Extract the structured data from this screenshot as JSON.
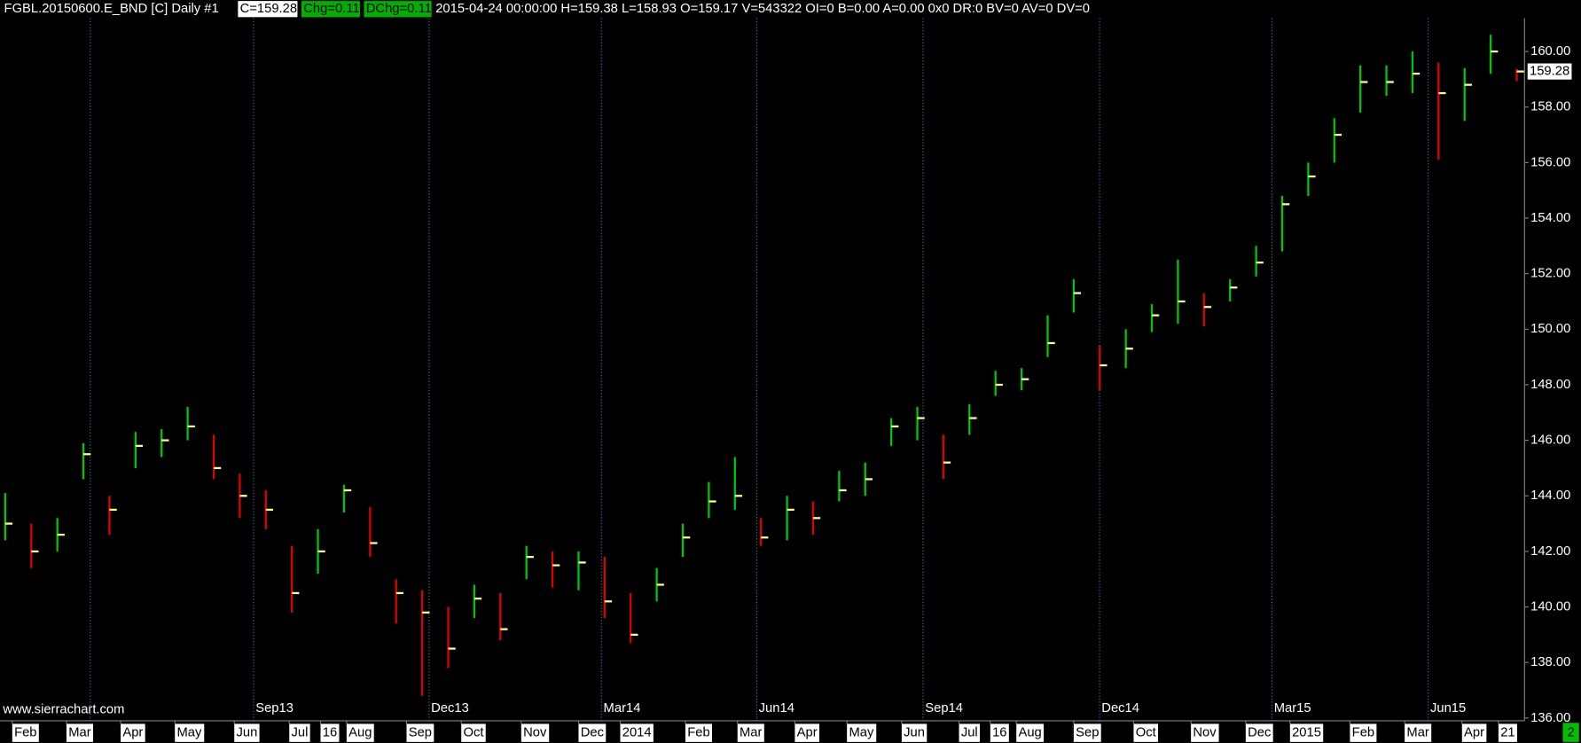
{
  "chart_data": {
    "type": "ohlc",
    "header": {
      "symbol": "FGBL.20150600.E_BND [C]  Daily  #1",
      "close": "C=159.28",
      "change": "Chg=0.11",
      "dchange": "DChg=0.11",
      "info": "2015-04-24 00:00:00 H=159.38 L=158.93 O=159.17 V=543322 OI=0 B=0.00 A=0.00 0x0 DR:0 BV=0 AV=0 DV=0"
    },
    "watermark": "www.sierrachart.com",
    "badge": "2",
    "up_color": "#00c800",
    "down_color": "#e00000",
    "close_tick_color": "#ffff80",
    "rollover_color": "#3f7f9f",
    "xlim": [
      -0.2,
      58.3
    ],
    "ylim": [
      135.9,
      161.2
    ],
    "yticks": [
      {
        "value": 136,
        "label": "136.00"
      },
      {
        "value": 138,
        "label": "138.00"
      },
      {
        "value": 140,
        "label": "140.00"
      },
      {
        "value": 142,
        "label": "142.00"
      },
      {
        "value": 144,
        "label": "144.00"
      },
      {
        "value": 146,
        "label": "146.00"
      },
      {
        "value": 148,
        "label": "148.00"
      },
      {
        "value": 150,
        "label": "150.00"
      },
      {
        "value": 152,
        "label": "152.00"
      },
      {
        "value": 154,
        "label": "154.00"
      },
      {
        "value": 156,
        "label": "156.00"
      },
      {
        "value": 158,
        "label": "158.00"
      },
      {
        "value": 160,
        "label": "160.00"
      }
    ],
    "xticks": [
      {
        "value": 0.27,
        "label": "Feb"
      },
      {
        "value": 2.35,
        "label": "Mar"
      },
      {
        "value": 4.43,
        "label": "Apr"
      },
      {
        "value": 6.51,
        "label": "May"
      },
      {
        "value": 8.79,
        "label": "Jun"
      },
      {
        "value": 10.9,
        "label": "Jul"
      },
      {
        "value": 12.1,
        "label": "16"
      },
      {
        "value": 13.1,
        "label": "Aug"
      },
      {
        "value": 15.4,
        "label": "Sep"
      },
      {
        "value": 17.5,
        "label": "Oct"
      },
      {
        "value": 19.8,
        "label": "Nov"
      },
      {
        "value": 22.0,
        "label": "Dec"
      },
      {
        "value": 23.6,
        "label": "2014"
      },
      {
        "value": 26.1,
        "label": "Feb"
      },
      {
        "value": 28.1,
        "label": "Mar"
      },
      {
        "value": 30.3,
        "label": "Apr"
      },
      {
        "value": 32.3,
        "label": "May"
      },
      {
        "value": 34.4,
        "label": "Jun"
      },
      {
        "value": 36.6,
        "label": "Jul"
      },
      {
        "value": 37.8,
        "label": "16"
      },
      {
        "value": 38.8,
        "label": "Aug"
      },
      {
        "value": 41.0,
        "label": "Sep"
      },
      {
        "value": 43.3,
        "label": "Oct"
      },
      {
        "value": 45.5,
        "label": "Nov"
      },
      {
        "value": 47.6,
        "label": "Dec"
      },
      {
        "value": 49.3,
        "label": "2015"
      },
      {
        "value": 51.6,
        "label": "Feb"
      },
      {
        "value": 53.7,
        "label": "Mar"
      },
      {
        "value": 55.9,
        "label": "Apr"
      },
      {
        "value": 57.3,
        "label": "21"
      }
    ],
    "rollovers": [
      3.24,
      9.52,
      16.26,
      22.85,
      28.82,
      35.22,
      41.97,
      48.59,
      54.57
    ],
    "rollover_labels": [
      null,
      "Sep13",
      "Dec13",
      "Mar14",
      "Jun14",
      "Sep14",
      "Dec14",
      "Mar15",
      "Jun15"
    ],
    "close": [
      143,
      142,
      142.6,
      145.5,
      143.5,
      145.8,
      146,
      146.5,
      145,
      144,
      143.5,
      140.5,
      142,
      144.2,
      142.3,
      140.5,
      139.8,
      138.5,
      140.3,
      139.2,
      141.8,
      141.5,
      141.6,
      140.2,
      139,
      140.8,
      142.5,
      143.8,
      144,
      142.5,
      143.5,
      143.2,
      144.2,
      144.6,
      146.5,
      146.8,
      145.2,
      146.8,
      148,
      148.2,
      149.5,
      151.3,
      148.7,
      149.3,
      150.5,
      151,
      150.8,
      151.5,
      152.4,
      154.5,
      155.5,
      157,
      158.9,
      158.9,
      159.2,
      158.5,
      158.8,
      160,
      159.28
    ],
    "high": [
      144.1,
      143,
      143.2,
      145.9,
      144,
      146.3,
      146.4,
      147.2,
      146.2,
      144.8,
      144.2,
      142.2,
      142.8,
      144.4,
      143.6,
      141,
      140.6,
      140,
      140.8,
      140.5,
      142.2,
      142,
      142,
      141.8,
      140.5,
      141.4,
      143,
      144.5,
      145.4,
      143.2,
      144,
      143.8,
      144.9,
      145.2,
      146.8,
      147.2,
      146.2,
      147.3,
      148.5,
      148.6,
      150.5,
      151.8,
      149.4,
      150,
      150.9,
      152.5,
      151.3,
      151.8,
      153,
      154.8,
      156,
      157.6,
      159.5,
      159.5,
      160,
      159.6,
      159.4,
      160.6,
      159.38
    ],
    "low": [
      142.4,
      141.4,
      142,
      144.6,
      142.6,
      145,
      145.4,
      146,
      144.6,
      143.2,
      142.8,
      139.8,
      141.2,
      143.4,
      141.8,
      139.4,
      136.8,
      137.8,
      139.6,
      138.8,
      141,
      140.7,
      140.6,
      139.6,
      138.7,
      140.2,
      141.8,
      143.2,
      143.5,
      142.2,
      142.4,
      142.6,
      143.8,
      144,
      145.8,
      146,
      144.6,
      146.2,
      147.6,
      147.8,
      149,
      150.6,
      147.8,
      148.6,
      149.9,
      150.2,
      150.1,
      151,
      151.9,
      152.8,
      154.8,
      156,
      157.8,
      158.4,
      158.5,
      156.1,
      157.5,
      159.2,
      158.93
    ]
  }
}
